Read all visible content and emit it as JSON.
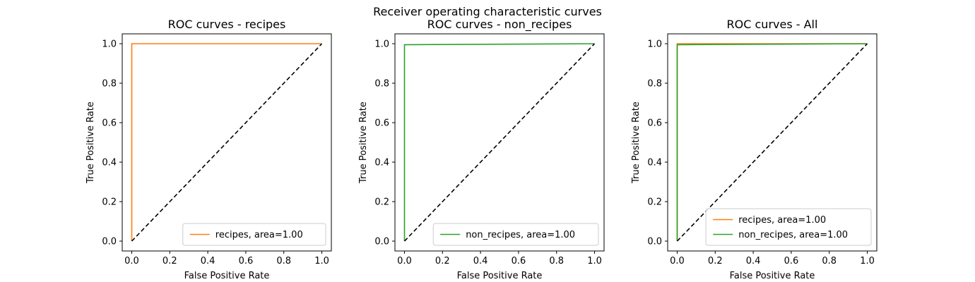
{
  "figure": {
    "suptitle": "Receiver operating characteristic curves"
  },
  "chart_data": [
    {
      "type": "line",
      "title": "ROC curves - recipes",
      "xlabel": "False Positive Rate",
      "ylabel": "True Positive Rate",
      "xlim": [
        -0.05,
        1.05
      ],
      "ylim": [
        -0.05,
        1.05
      ],
      "xticks": [
        "0.0",
        "0.2",
        "0.4",
        "0.6",
        "0.8",
        "1.0"
      ],
      "yticks": [
        "0.0",
        "0.2",
        "0.4",
        "0.6",
        "0.8",
        "1.0"
      ],
      "grid": false,
      "legend": "lower right",
      "series": [
        {
          "name": "recipes, area=1.00",
          "color": "#ff7f0e",
          "dashed": false,
          "x": [
            0.0,
            0.0,
            1.0
          ],
          "y": [
            0.0,
            1.0,
            1.0
          ]
        },
        {
          "color": "#000000",
          "dashed": true,
          "x": [
            0.0,
            1.0
          ],
          "y": [
            0.0,
            1.0
          ]
        }
      ]
    },
    {
      "type": "line",
      "title": "ROC curves - non_recipes",
      "xlabel": "False Positive Rate",
      "ylabel": "True Positive Rate",
      "xlim": [
        -0.05,
        1.05
      ],
      "ylim": [
        -0.05,
        1.05
      ],
      "xticks": [
        "0.0",
        "0.2",
        "0.4",
        "0.6",
        "0.8",
        "1.0"
      ],
      "yticks": [
        "0.0",
        "0.2",
        "0.4",
        "0.6",
        "0.8",
        "1.0"
      ],
      "grid": false,
      "legend": "lower right",
      "series": [
        {
          "name": "non_recipes, area=1.00",
          "color": "#2ca02c",
          "dashed": false,
          "x": [
            0.0,
            0.0,
            1.0
          ],
          "y": [
            0.0,
            0.995,
            1.0
          ]
        },
        {
          "color": "#000000",
          "dashed": true,
          "x": [
            0.0,
            1.0
          ],
          "y": [
            0.0,
            1.0
          ]
        }
      ]
    },
    {
      "type": "line",
      "title": "ROC curves - All",
      "xlabel": "False Positive Rate",
      "ylabel": "True Positive Rate",
      "xlim": [
        -0.05,
        1.05
      ],
      "ylim": [
        -0.05,
        1.05
      ],
      "xticks": [
        "0.0",
        "0.2",
        "0.4",
        "0.6",
        "0.8",
        "1.0"
      ],
      "yticks": [
        "0.0",
        "0.2",
        "0.4",
        "0.6",
        "0.8",
        "1.0"
      ],
      "grid": false,
      "legend": "lower right",
      "series": [
        {
          "name": "recipes, area=1.00",
          "color": "#ff7f0e",
          "dashed": false,
          "x": [
            0.0,
            0.0,
            1.0
          ],
          "y": [
            0.0,
            1.0,
            1.0
          ]
        },
        {
          "name": "non_recipes, area=1.00",
          "color": "#2ca02c",
          "dashed": false,
          "x": [
            0.0,
            0.0,
            1.0
          ],
          "y": [
            0.0,
            0.995,
            1.0
          ]
        },
        {
          "color": "#000000",
          "dashed": true,
          "x": [
            0.0,
            1.0
          ],
          "y": [
            0.0,
            1.0
          ]
        }
      ]
    }
  ]
}
